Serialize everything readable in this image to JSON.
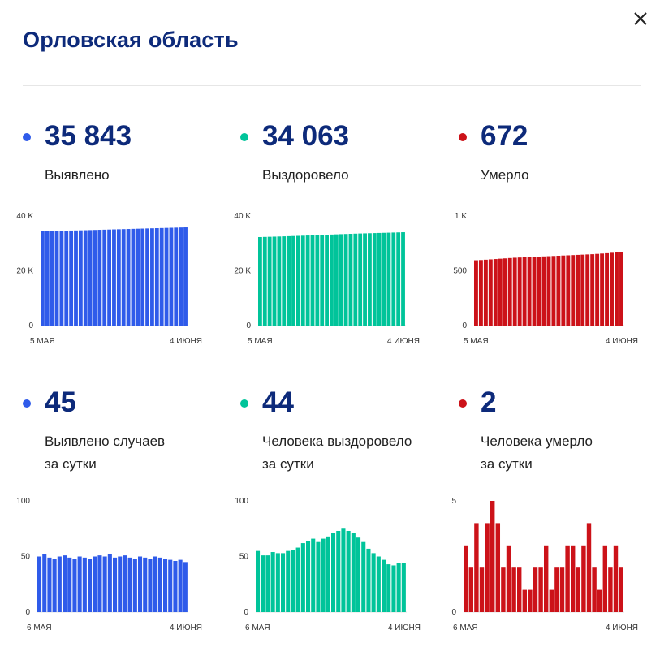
{
  "header": {
    "title": "Орловская область",
    "close_icon": "close-icon"
  },
  "stats": [
    {
      "value": "35 843",
      "label": [
        "Выявлено"
      ],
      "color": "#2f5bea"
    },
    {
      "value": "34 063",
      "label": [
        "Выздоровело"
      ],
      "color": "#00c49a"
    },
    {
      "value": "672",
      "label": [
        "Умерло"
      ],
      "color": "#cc1219"
    },
    {
      "value": "45",
      "label": [
        "Выявлено случаев",
        "за сутки"
      ],
      "color": "#2f5bea"
    },
    {
      "value": "44",
      "label": [
        "Человека выздоровело",
        "за сутки"
      ],
      "color": "#00c49a"
    },
    {
      "value": "2",
      "label": [
        "Человека умерло",
        "за сутки"
      ],
      "color": "#cc1219"
    }
  ],
  "chart_data": [
    {
      "type": "bar",
      "name": "Выявлено",
      "x_start": "5 МАЯ",
      "x_end": "4 ИЮНЯ",
      "yticks": [
        {
          "v": 0,
          "t": "0"
        },
        {
          "v": 20000,
          "t": "20 K"
        },
        {
          "v": 40000,
          "t": "40 K"
        }
      ],
      "ylim": [
        0,
        40000
      ],
      "color": "#2f5bea",
      "values": [
        34400,
        34450,
        34500,
        34550,
        34600,
        34640,
        34680,
        34720,
        34760,
        34800,
        34850,
        34900,
        34950,
        35000,
        35050,
        35100,
        35150,
        35200,
        35250,
        35300,
        35350,
        35400,
        35450,
        35500,
        35550,
        35600,
        35650,
        35700,
        35750,
        35800,
        35843
      ]
    },
    {
      "type": "bar",
      "name": "Выздоровело",
      "x_start": "5 МАЯ",
      "x_end": "4 ИЮНЯ",
      "yticks": [
        {
          "v": 0,
          "t": "0"
        },
        {
          "v": 20000,
          "t": "20 K"
        },
        {
          "v": 40000,
          "t": "40 K"
        }
      ],
      "ylim": [
        0,
        40000
      ],
      "color": "#00c49a",
      "values": [
        32300,
        32350,
        32400,
        32450,
        32500,
        32560,
        32620,
        32680,
        32740,
        32800,
        32870,
        32940,
        33010,
        33080,
        33150,
        33220,
        33290,
        33360,
        33420,
        33480,
        33540,
        33600,
        33650,
        33700,
        33750,
        33800,
        33850,
        33900,
        33950,
        34000,
        34063
      ]
    },
    {
      "type": "bar",
      "name": "Умерло",
      "x_start": "5 МАЯ",
      "x_end": "4 ИЮНЯ",
      "yticks": [
        {
          "v": 0,
          "t": "0"
        },
        {
          "v": 500,
          "t": "500"
        },
        {
          "v": 1000,
          "t": "1 K"
        }
      ],
      "ylim": [
        0,
        1000
      ],
      "color": "#cc1219",
      "values": [
        596,
        598,
        601,
        604,
        607,
        610,
        613,
        616,
        619,
        621,
        623,
        625,
        627,
        629,
        631,
        633,
        635,
        637,
        639,
        641,
        643,
        645,
        647,
        649,
        651,
        654,
        657,
        660,
        664,
        668,
        672
      ]
    },
    {
      "type": "bar",
      "name": "Выявлено случаев за сутки",
      "x_start": "6 МАЯ",
      "x_end": "4 ИЮНЯ",
      "yticks": [
        {
          "v": 0,
          "t": "0"
        },
        {
          "v": 50,
          "t": "50"
        },
        {
          "v": 100,
          "t": "100"
        }
      ],
      "ylim": [
        0,
        100
      ],
      "color": "#2f5bea",
      "values": [
        50,
        52,
        49,
        48,
        50,
        51,
        49,
        48,
        50,
        49,
        48,
        50,
        51,
        50,
        52,
        49,
        50,
        51,
        49,
        48,
        50,
        49,
        48,
        50,
        49,
        48,
        47,
        46,
        47,
        45
      ]
    },
    {
      "type": "bar",
      "name": "Человека выздоровело за сутки",
      "x_start": "6 МАЯ",
      "x_end": "4 ИЮНЯ",
      "yticks": [
        {
          "v": 0,
          "t": "0"
        },
        {
          "v": 50,
          "t": "50"
        },
        {
          "v": 100,
          "t": "100"
        }
      ],
      "ylim": [
        0,
        100
      ],
      "color": "#00c49a",
      "values": [
        55,
        51,
        51,
        54,
        53,
        53,
        55,
        56,
        58,
        62,
        64,
        66,
        63,
        66,
        68,
        71,
        73,
        75,
        73,
        71,
        67,
        63,
        57,
        53,
        50,
        47,
        43,
        42,
        44,
        44
      ]
    },
    {
      "type": "bar",
      "name": "Человека умерло за сутки",
      "x_start": "6 МАЯ",
      "x_end": "4 ИЮНЯ",
      "yticks": [
        {
          "v": 0,
          "t": "0"
        },
        {
          "v": 5,
          "t": "5"
        }
      ],
      "ylim": [
        0,
        5
      ],
      "color": "#cc1219",
      "values": [
        3,
        2,
        4,
        2,
        4,
        5,
        4,
        2,
        3,
        2,
        2,
        1,
        1,
        2,
        2,
        3,
        1,
        2,
        2,
        3,
        3,
        2,
        3,
        4,
        2,
        1,
        3,
        2,
        3,
        2
      ]
    }
  ]
}
